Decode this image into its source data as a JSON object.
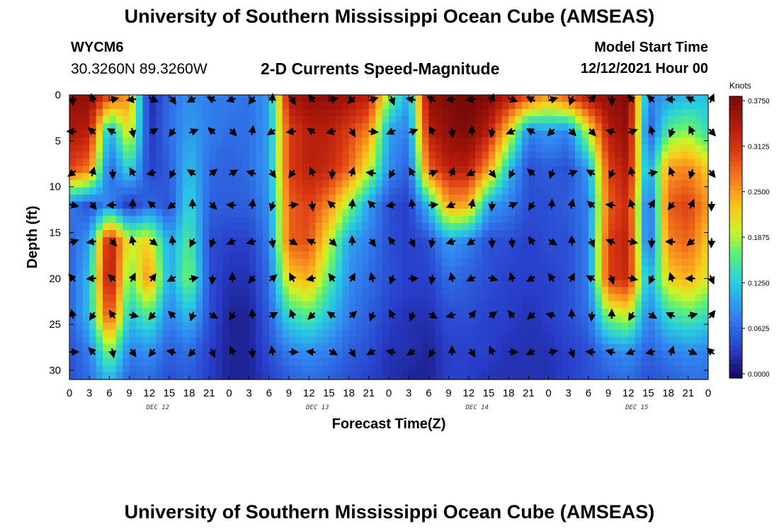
{
  "header": {
    "title": "University of Southern Mississippi Ocean Cube (AMSEAS)",
    "station_id": "WYCM6",
    "coords": "30.3260N  89.3260W",
    "plot_title": "2-D Currents Speed-Magnitude",
    "model_start_label": "Model Start Time",
    "model_start_value": "12/12/2021 Hour 00"
  },
  "footer": {
    "title": "University of Southern Mississippi Ocean Cube (AMSEAS)"
  },
  "chart_data": {
    "type": "heatmap",
    "title": "2-D Currents Speed-Magnitude",
    "xlabel": "Forecast Time(Z)",
    "ylabel": "Depth (ft)",
    "x_range_hours": [
      0,
      96
    ],
    "ylim": [
      0,
      31
    ],
    "x_tick_labels": [
      "0",
      "3",
      "6",
      "9",
      "12",
      "15",
      "18",
      "21",
      "0",
      "3",
      "6",
      "9",
      "12",
      "15",
      "18",
      "21",
      "0",
      "3",
      "6",
      "9",
      "12",
      "15",
      "18",
      "21",
      "0",
      "3",
      "6",
      "9",
      "12",
      "15",
      "18",
      "21",
      "0"
    ],
    "y_ticks": [
      0,
      5,
      10,
      15,
      20,
      25,
      30
    ],
    "day_labels": [
      {
        "label": "DEC 12",
        "hour": 12
      },
      {
        "label": "DEC 13",
        "hour": 36
      },
      {
        "label": "DEC 14",
        "hour": 60
      },
      {
        "label": "DEC 15",
        "hour": 84
      }
    ],
    "colorbar": {
      "units": "Knots",
      "min": 0.0,
      "max": 0.375,
      "ticks": [
        "0.3750",
        "0.3125",
        "0.2500",
        "0.1875",
        "0.1250",
        "0.0625",
        "0.0000"
      ]
    },
    "vector_depths_ft": [
      0.5,
      4,
      8.5,
      12,
      16,
      20,
      24,
      28
    ],
    "speed_grid": {
      "x_hours": [
        0,
        3,
        6,
        9,
        12,
        15,
        18,
        21,
        24,
        27,
        30,
        33,
        36,
        39,
        42,
        45,
        48,
        51,
        54,
        57,
        60,
        63,
        66,
        69,
        72,
        75,
        78,
        81,
        84,
        87,
        90,
        93,
        96
      ],
      "depths_ft": [
        0,
        4,
        8,
        12,
        16,
        20,
        24,
        28,
        31
      ],
      "rows": [
        [
          0.36,
          0.36,
          0.3,
          0.25,
          0.02,
          0.07,
          0.09,
          0.08,
          0.08,
          0.07,
          0.1,
          0.34,
          0.36,
          0.36,
          0.35,
          0.33,
          0.18,
          0.1,
          0.36,
          0.37,
          0.38,
          0.37,
          0.34,
          0.3,
          0.25,
          0.3,
          0.35,
          0.36,
          0.37,
          0.08,
          0.1,
          0.11,
          0.12
        ],
        [
          0.34,
          0.33,
          0.1,
          0.22,
          0.03,
          0.07,
          0.1,
          0.08,
          0.07,
          0.07,
          0.1,
          0.3,
          0.33,
          0.33,
          0.3,
          0.26,
          0.1,
          0.08,
          0.33,
          0.36,
          0.37,
          0.33,
          0.22,
          0.08,
          0.1,
          0.08,
          0.2,
          0.33,
          0.36,
          0.05,
          0.16,
          0.18,
          0.14
        ],
        [
          0.3,
          0.27,
          0.06,
          0.14,
          0.04,
          0.06,
          0.12,
          0.07,
          0.06,
          0.07,
          0.1,
          0.3,
          0.33,
          0.32,
          0.28,
          0.2,
          0.09,
          0.06,
          0.28,
          0.33,
          0.33,
          0.25,
          0.12,
          0.05,
          0.06,
          0.05,
          0.1,
          0.3,
          0.34,
          0.09,
          0.25,
          0.26,
          0.22
        ],
        [
          0.08,
          0.05,
          0.09,
          0.03,
          0.07,
          0.05,
          0.14,
          0.06,
          0.06,
          0.06,
          0.09,
          0.28,
          0.3,
          0.26,
          0.18,
          0.1,
          0.05,
          0.04,
          0.12,
          0.25,
          0.24,
          0.1,
          0.08,
          0.05,
          0.05,
          0.06,
          0.08,
          0.28,
          0.32,
          0.05,
          0.28,
          0.3,
          0.25
        ],
        [
          0.06,
          0.1,
          0.34,
          0.2,
          0.22,
          0.1,
          0.16,
          0.05,
          0.04,
          0.04,
          0.08,
          0.28,
          0.29,
          0.2,
          0.1,
          0.08,
          0.05,
          0.04,
          0.05,
          0.1,
          0.08,
          0.05,
          0.05,
          0.04,
          0.05,
          0.05,
          0.08,
          0.3,
          0.33,
          0.05,
          0.26,
          0.28,
          0.22
        ],
        [
          0.06,
          0.12,
          0.35,
          0.16,
          0.26,
          0.1,
          0.18,
          0.05,
          0.03,
          0.03,
          0.07,
          0.22,
          0.24,
          0.16,
          0.09,
          0.07,
          0.05,
          0.04,
          0.04,
          0.07,
          0.06,
          0.05,
          0.04,
          0.04,
          0.04,
          0.05,
          0.08,
          0.3,
          0.32,
          0.1,
          0.22,
          0.24,
          0.2
        ],
        [
          0.06,
          0.12,
          0.3,
          0.12,
          0.16,
          0.08,
          0.12,
          0.05,
          0.02,
          0.02,
          0.06,
          0.14,
          0.16,
          0.12,
          0.08,
          0.06,
          0.04,
          0.03,
          0.03,
          0.05,
          0.05,
          0.04,
          0.04,
          0.03,
          0.04,
          0.05,
          0.07,
          0.18,
          0.2,
          0.08,
          0.14,
          0.16,
          0.14
        ],
        [
          0.05,
          0.08,
          0.18,
          0.08,
          0.09,
          0.06,
          0.07,
          0.04,
          0.02,
          0.02,
          0.05,
          0.08,
          0.09,
          0.08,
          0.06,
          0.05,
          0.03,
          0.03,
          0.02,
          0.04,
          0.04,
          0.04,
          0.03,
          0.03,
          0.03,
          0.04,
          0.05,
          0.08,
          0.09,
          0.06,
          0.08,
          0.09,
          0.08
        ],
        [
          0.05,
          0.07,
          0.12,
          0.06,
          0.07,
          0.05,
          0.06,
          0.04,
          0.02,
          0.02,
          0.04,
          0.06,
          0.07,
          0.06,
          0.05,
          0.04,
          0.03,
          0.02,
          0.02,
          0.04,
          0.04,
          0.03,
          0.03,
          0.03,
          0.03,
          0.04,
          0.05,
          0.06,
          0.07,
          0.05,
          0.06,
          0.07,
          0.07
        ]
      ]
    }
  }
}
